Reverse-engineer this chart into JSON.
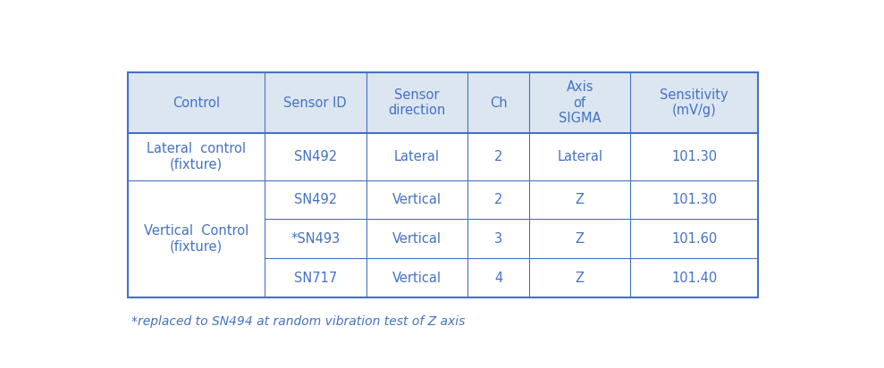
{
  "header": [
    "Control",
    "Sensor ID",
    "Sensor\ndirection",
    "Ch",
    "Axis\nof\nSIGMA",
    "Sensitivity\n(mV/g)"
  ],
  "row1_control": "Lateral  control\n(fixture)",
  "row1_cells": [
    "SN492",
    "Lateral",
    "2",
    "Lateral",
    "101.30"
  ],
  "row2_control": "Vertical  Control\n(fixture)",
  "row2_cells": [
    [
      "SN492",
      "Vertical",
      "2",
      "Z",
      "101.30"
    ],
    [
      "*SN493",
      "Vertical",
      "3",
      "Z",
      "101.60"
    ],
    [
      "SN717",
      "Vertical",
      "4",
      "Z",
      "101.40"
    ]
  ],
  "footnote": "*replaced to SN494 at random vibration test of Z axis",
  "header_bg": "#dce6f1",
  "text_color": "#4472c4",
  "border_color": "#4472c4",
  "bg_color": "#ffffff",
  "header_fontsize": 10.5,
  "cell_fontsize": 10.5,
  "footnote_fontsize": 10
}
